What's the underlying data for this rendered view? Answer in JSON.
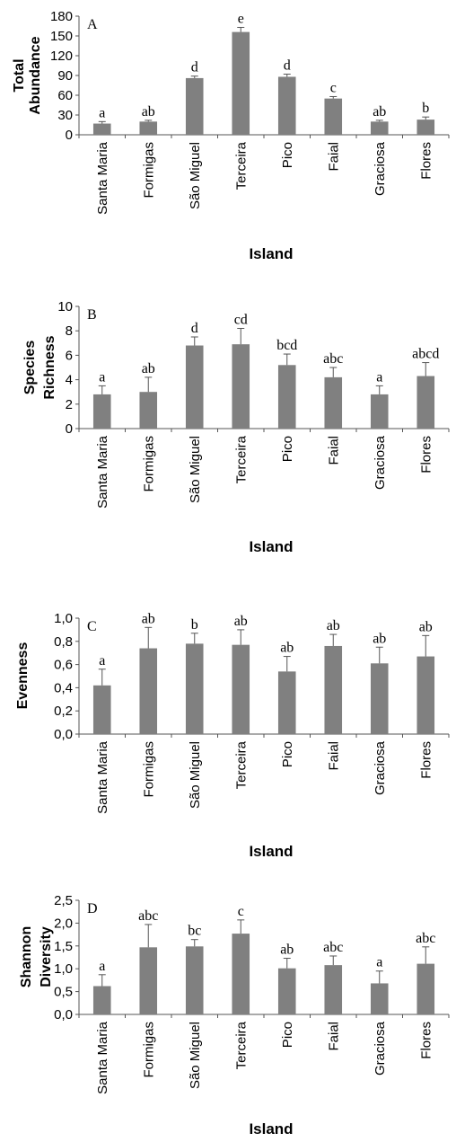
{
  "chart_data": [
    {
      "type": "bar",
      "panel_letter": "A",
      "ylabel": [
        "Total",
        "Abundance"
      ],
      "xlabel": "Island",
      "categories": [
        "Santa Maria",
        "Formigas",
        "São Miguel",
        "Terceira",
        "Pico",
        "Faial",
        "Graciosa",
        "Flores"
      ],
      "values": [
        17,
        20,
        86,
        156,
        88,
        55,
        20,
        23
      ],
      "errors": [
        3,
        2,
        3,
        7,
        4,
        3,
        2,
        4
      ],
      "letters": [
        "a",
        "ab",
        "d",
        "e",
        "d",
        "c",
        "ab",
        "b"
      ],
      "ylim": [
        0,
        180
      ],
      "yticks": [
        "0",
        "30",
        "60",
        "90",
        "120",
        "150",
        "180"
      ],
      "color": "#808080"
    },
    {
      "type": "bar",
      "panel_letter": "B",
      "ylabel": [
        "Species",
        "Richness"
      ],
      "xlabel": "Island",
      "categories": [
        "Santa Maria",
        "Formigas",
        "São Miguel",
        "Terceira",
        "Pico",
        "Faial",
        "Graciosa",
        "Flores"
      ],
      "values": [
        2.8,
        3.0,
        6.8,
        6.9,
        5.2,
        4.2,
        2.8,
        4.3
      ],
      "errors": [
        0.7,
        1.2,
        0.7,
        1.3,
        0.9,
        0.8,
        0.7,
        1.1
      ],
      "letters": [
        "a",
        "ab",
        "d",
        "cd",
        "bcd",
        "abc",
        "a",
        "abcd"
      ],
      "ylim": [
        0,
        10
      ],
      "yticks": [
        "0",
        "2",
        "4",
        "6",
        "8",
        "10"
      ],
      "color": "#808080"
    },
    {
      "type": "bar",
      "panel_letter": "C",
      "ylabel": [
        "Evenness"
      ],
      "xlabel": "Island",
      "categories": [
        "Santa Maria",
        "Formigas",
        "São Miguel",
        "Terceira",
        "Pico",
        "Faial",
        "Graciosa",
        "Flores"
      ],
      "values": [
        0.42,
        0.74,
        0.78,
        0.77,
        0.54,
        0.76,
        0.61,
        0.67
      ],
      "errors": [
        0.14,
        0.18,
        0.09,
        0.13,
        0.13,
        0.1,
        0.14,
        0.18
      ],
      "letters": [
        "a",
        "ab",
        "b",
        "ab",
        "ab",
        "ab",
        "ab",
        "ab"
      ],
      "ylim": [
        0,
        1
      ],
      "yticks": [
        "0,0",
        "0,2",
        "0,4",
        "0,6",
        "0,8",
        "1,0"
      ],
      "color": "#808080"
    },
    {
      "type": "bar",
      "panel_letter": "D",
      "ylabel": [
        "Shannon",
        "Diversity"
      ],
      "xlabel": "Island",
      "categories": [
        "Santa Maria",
        "Formigas",
        "São Miguel",
        "Terceira",
        "Pico",
        "Faial",
        "Graciosa",
        "Flores"
      ],
      "values": [
        0.62,
        1.47,
        1.49,
        1.77,
        1.01,
        1.08,
        0.68,
        1.11
      ],
      "errors": [
        0.25,
        0.5,
        0.15,
        0.3,
        0.22,
        0.2,
        0.27,
        0.37
      ],
      "letters": [
        "a",
        "abc",
        "bc",
        "c",
        "ab",
        "abc",
        "a",
        "abc"
      ],
      "ylim": [
        0,
        2.5
      ],
      "yticks": [
        "0,0",
        "0,5",
        "1,0",
        "1,5",
        "2,0",
        "2,5"
      ],
      "color": "#808080"
    }
  ]
}
